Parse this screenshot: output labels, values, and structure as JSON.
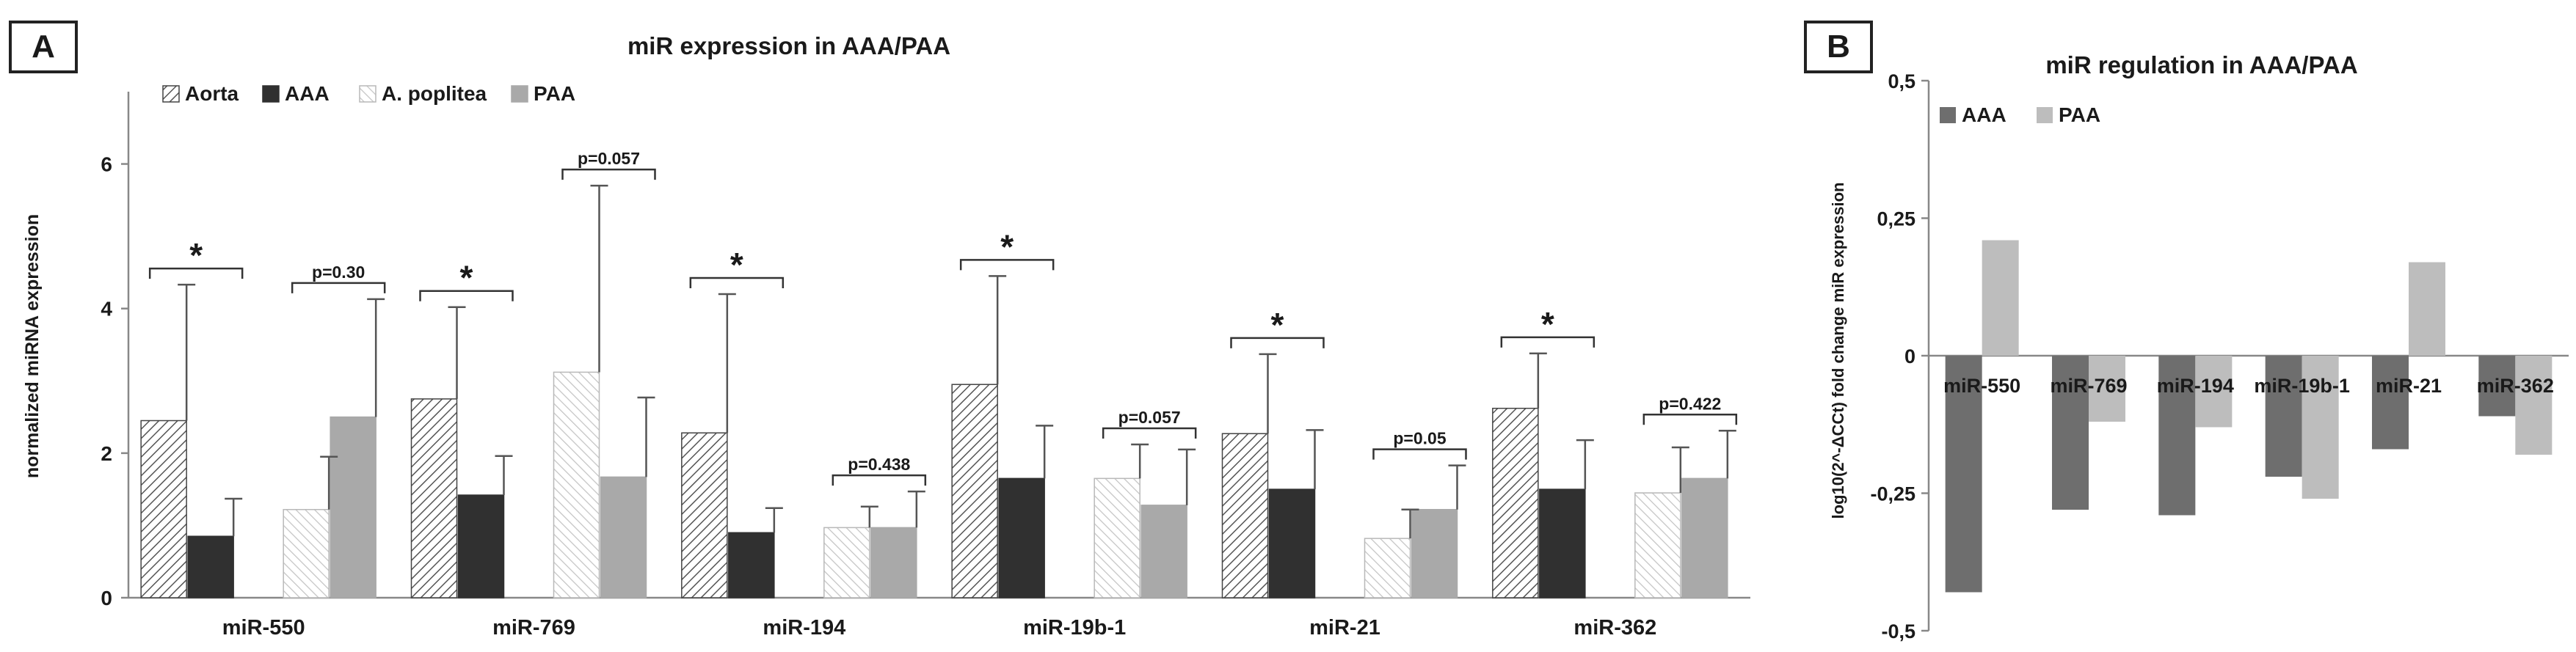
{
  "panel_a": {
    "label": "A",
    "chart_data": {
      "type": "bar",
      "title": "miR expression in AAA/PAA",
      "xlabel": "",
      "ylabel": "normalized miRNA expression",
      "ylim": [
        0,
        7
      ],
      "yticks": [
        0,
        2,
        4,
        6
      ],
      "categories": [
        "miR-550",
        "miR-769",
        "miR-194",
        "miR-19b-1",
        "miR-21",
        "miR-362"
      ],
      "series": [
        {
          "name": "Aorta",
          "color": "#ffffff",
          "pattern": "hatch-dense",
          "values": [
            2.45,
            2.75,
            2.28,
            2.95,
            2.27,
            2.62
          ],
          "errors": [
            1.88,
            1.27,
            1.92,
            1.5,
            1.1,
            0.76
          ]
        },
        {
          "name": "AAA",
          "color": "#303030",
          "values": [
            0.85,
            1.42,
            0.9,
            1.65,
            1.5,
            1.5
          ],
          "errors": [
            0.52,
            0.54,
            0.34,
            0.73,
            0.82,
            0.68
          ]
        },
        {
          "name": "A. poplitea",
          "color": "#ffffff",
          "pattern": "hatch-light",
          "values": [
            1.22,
            3.12,
            0.97,
            1.65,
            0.82,
            1.45
          ],
          "errors": [
            0.73,
            2.58,
            0.29,
            0.47,
            0.4,
            0.63
          ]
        },
        {
          "name": "PAA",
          "color": "#a9a9a9",
          "values": [
            2.5,
            1.67,
            0.97,
            1.28,
            1.22,
            1.65
          ],
          "errors": [
            1.63,
            1.1,
            0.5,
            0.77,
            0.61,
            0.66
          ]
        }
      ],
      "annotations": [
        {
          "category": "miR-550",
          "pair": "aorta-aaa",
          "text": "*"
        },
        {
          "category": "miR-550",
          "pair": "poplitea-paa",
          "text": "p=0.30"
        },
        {
          "category": "miR-769",
          "pair": "aorta-aaa",
          "text": "*"
        },
        {
          "category": "miR-769",
          "pair": "poplitea-paa",
          "text": "p=0.057"
        },
        {
          "category": "miR-194",
          "pair": "aorta-aaa",
          "text": "*"
        },
        {
          "category": "miR-194",
          "pair": "poplitea-paa",
          "text": "p=0.438"
        },
        {
          "category": "miR-19b-1",
          "pair": "aorta-aaa",
          "text": "*"
        },
        {
          "category": "miR-19b-1",
          "pair": "poplitea-paa",
          "text": "p=0.057"
        },
        {
          "category": "miR-21",
          "pair": "aorta-aaa",
          "text": "*"
        },
        {
          "category": "miR-21",
          "pair": "poplitea-paa",
          "text": "p=0.05"
        },
        {
          "category": "miR-362",
          "pair": "aorta-aaa",
          "text": "*"
        },
        {
          "category": "miR-362",
          "pair": "poplitea-paa",
          "text": "p=0.422"
        }
      ],
      "legend": "top-left"
    }
  },
  "panel_b": {
    "label": "B",
    "chart_data": {
      "type": "bar",
      "title": "miR regulation in AAA/PAA",
      "xlabel": "",
      "ylabel": "log10(2^-ΔCCt) fold change miR expression",
      "ylim": [
        -0.5,
        0.5
      ],
      "yticks": [
        -0.5,
        -0.25,
        0,
        0.25,
        0.5
      ],
      "ytick_labels": [
        "-0,5",
        "-0,25",
        "0",
        "0,25",
        "0,5"
      ],
      "categories": [
        "miR-550",
        "miR-769",
        "miR-194",
        "miR-19b-1",
        "miR-21",
        "miR-362"
      ],
      "series": [
        {
          "name": "AAA",
          "color": "#6e6e6e",
          "values": [
            -0.43,
            -0.28,
            -0.29,
            -0.22,
            -0.17,
            -0.11
          ]
        },
        {
          "name": "PAA",
          "color": "#bdbdbd",
          "values": [
            0.21,
            -0.12,
            -0.13,
            -0.26,
            0.17,
            -0.18
          ]
        }
      ],
      "legend": "top-left"
    }
  }
}
